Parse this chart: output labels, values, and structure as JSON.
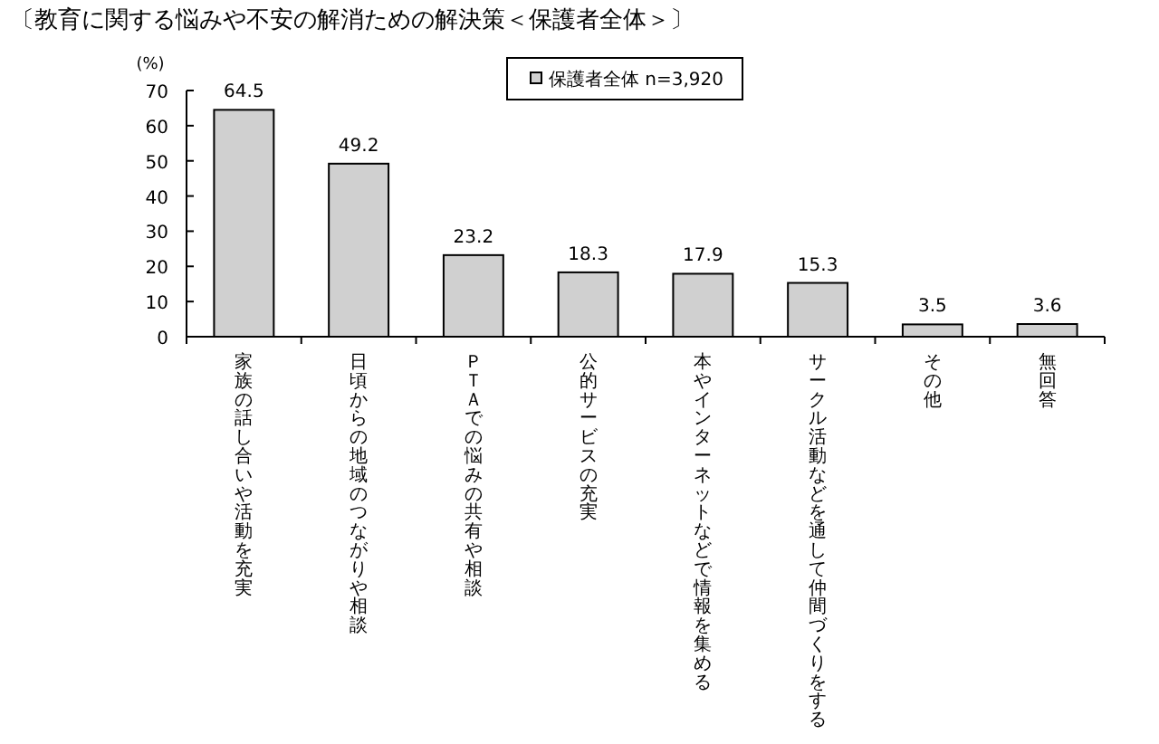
{
  "chart_data": {
    "type": "bar",
    "title": "〔教育に関する悩みや不安の解消ための解決策＜保護者全体＞〕",
    "ylabel": "(%)",
    "categories": [
      "家族の話し合いや活動を充実",
      "日頃からの地域のつながりや相談",
      "ＰＴＡでの悩みの共有や相談",
      "公的サービスの充実",
      "本やインターネットなどで情報を集める",
      "サークル活動などを通して仲間づくりをする",
      "その他",
      "無回答"
    ],
    "series": [
      {
        "name": "保護者全体 n=3,920",
        "color": "#d0d0d0",
        "values": [
          64.5,
          49.2,
          23.2,
          18.3,
          17.9,
          15.3,
          3.5,
          3.6
        ]
      }
    ],
    "ylim": [
      0,
      70
    ],
    "yticks": [
      0,
      10,
      20,
      30,
      40,
      50,
      60,
      70
    ],
    "data_labels": true,
    "legend": "top right",
    "grid": false
  }
}
